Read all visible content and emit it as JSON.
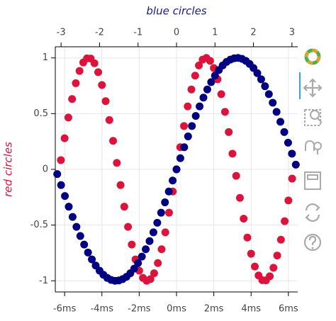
{
  "chart_data": {
    "type": "scatter",
    "x_axis_label_top": "blue circles",
    "y_axis_label": "red circles",
    "xlim": [
      -6.5,
      6.5
    ],
    "xticks": [
      {
        "value": -6,
        "label": "-6ms"
      },
      {
        "value": -4,
        "label": "-4ms"
      },
      {
        "value": -2,
        "label": "-2ms"
      },
      {
        "value": 0,
        "label": "0ms"
      },
      {
        "value": 2,
        "label": "2ms"
      },
      {
        "value": 4,
        "label": "4ms"
      },
      {
        "value": 6,
        "label": "6ms"
      }
    ],
    "x2lim": [
      -3.15,
      3.15
    ],
    "x2ticks": [
      -3,
      -2,
      -1,
      0,
      1,
      2,
      3
    ],
    "ylim": [
      -1.1,
      1.1
    ],
    "yticks": [
      -1,
      -0.5,
      0,
      0.5,
      1
    ],
    "grid": true,
    "series": [
      {
        "color": "#dc143c",
        "axis": "x",
        "x": [
          -6.2,
          -6,
          -5.8,
          -5.6,
          -5.4,
          -5.2,
          -5,
          -4.8,
          -4.6,
          -4.4,
          -4.2,
          -4,
          -3.8,
          -3.6,
          -3.4,
          -3.2,
          -3,
          -2.8,
          -2.6,
          -2.4,
          -2.2,
          -2,
          -1.8,
          -1.6,
          -1.4,
          -1.2,
          -1,
          -0.8,
          -0.6,
          -0.4,
          -0.2,
          0,
          0.2,
          0.4,
          0.6,
          0.8,
          1,
          1.2,
          1.4,
          1.6,
          1.8,
          2,
          2.2,
          2.4,
          2.6,
          2.8,
          3,
          3.2,
          3.4,
          3.6,
          3.8,
          4,
          4.2,
          4.4,
          4.6,
          4.8,
          5,
          5.2,
          5.4,
          5.6,
          5.8,
          6,
          6.2
        ],
        "values": [
          0.083,
          0.279,
          0.465,
          0.631,
          0.773,
          0.883,
          0.959,
          0.996,
          0.994,
          0.952,
          0.872,
          0.757,
          0.612,
          0.443,
          0.256,
          0.058,
          -0.141,
          -0.335,
          -0.516,
          -0.675,
          -0.808,
          -0.909,
          -0.974,
          -1,
          -0.985,
          -0.932,
          -0.841,
          -0.717,
          -0.565,
          -0.389,
          -0.199,
          0,
          0.199,
          0.389,
          0.565,
          0.717,
          0.841,
          0.932,
          0.985,
          1,
          0.974,
          0.909,
          0.808,
          0.675,
          0.516,
          0.335,
          0.141,
          -0.058,
          -0.256,
          -0.443,
          -0.612,
          -0.757,
          -0.872,
          -0.952,
          -0.994,
          -0.996,
          -0.959,
          -0.883,
          -0.773,
          -0.631,
          -0.465,
          -0.279,
          -0.083
        ]
      },
      {
        "color": "#000080",
        "axis": "x2",
        "x": [
          -3.1,
          -3,
          -2.9,
          -2.8,
          -2.7,
          -2.6,
          -2.5,
          -2.4,
          -2.3,
          -2.2,
          -2.1,
          -2,
          -1.9,
          -1.8,
          -1.7,
          -1.6,
          -1.5,
          -1.4,
          -1.3,
          -1.2,
          -1.1,
          -1,
          -0.9,
          -0.8,
          -0.7,
          -0.6,
          -0.5,
          -0.4,
          -0.3,
          -0.2,
          -0.1,
          0,
          0.1,
          0.2,
          0.3,
          0.4,
          0.5,
          0.6,
          0.7,
          0.8,
          0.9,
          1,
          1.1,
          1.2,
          1.3,
          1.4,
          1.5,
          1.6,
          1.7,
          1.8,
          1.9,
          2,
          2.1,
          2.2,
          2.3,
          2.4,
          2.5,
          2.6,
          2.7,
          2.8,
          2.9,
          3,
          3.1
        ],
        "values": [
          -0.042,
          -0.141,
          -0.239,
          -0.335,
          -0.427,
          -0.516,
          -0.598,
          -0.675,
          -0.746,
          -0.808,
          -0.863,
          -0.909,
          -0.946,
          -0.974,
          -0.992,
          -1,
          -0.997,
          -0.985,
          -0.964,
          -0.932,
          -0.891,
          -0.841,
          -0.783,
          -0.717,
          -0.644,
          -0.565,
          -0.479,
          -0.389,
          -0.296,
          -0.199,
          -0.1,
          0,
          0.1,
          0.199,
          0.296,
          0.389,
          0.479,
          0.565,
          0.644,
          0.717,
          0.783,
          0.841,
          0.891,
          0.932,
          0.964,
          0.985,
          0.997,
          1,
          0.992,
          0.974,
          0.946,
          0.909,
          0.863,
          0.808,
          0.746,
          0.675,
          0.598,
          0.516,
          0.427,
          0.335,
          0.239,
          0.141,
          0.042
        ]
      }
    ]
  }
}
